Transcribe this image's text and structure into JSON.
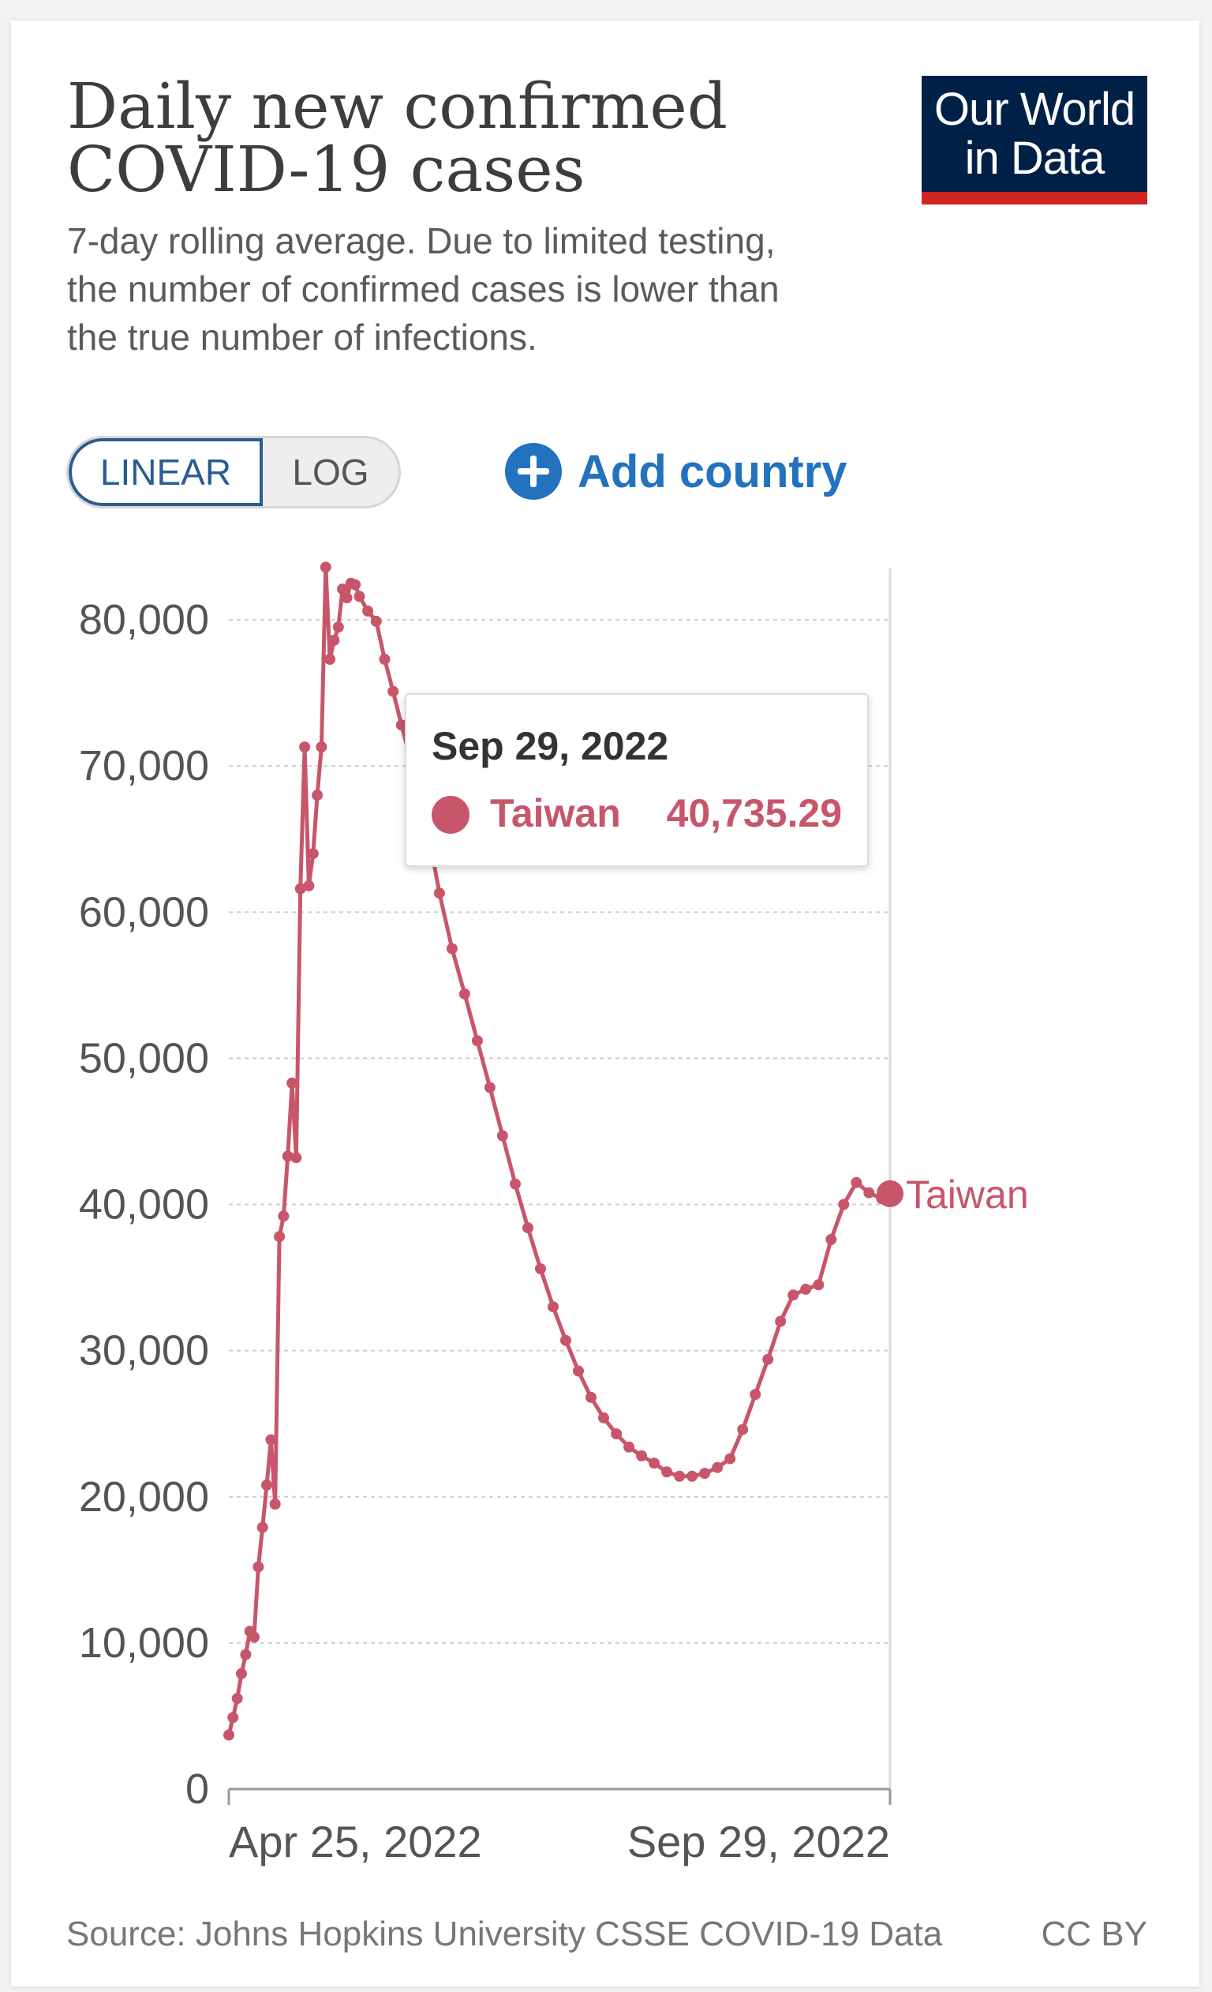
{
  "header": {
    "title_line1": "Daily new confirmed",
    "title_line2": "COVID-19 cases",
    "subtitle_line1": "7-day rolling average. Due to limited testing,",
    "subtitle_line2": "the number of confirmed cases is lower than",
    "subtitle_line3": "the true number of infections.",
    "logo_line1": "Our World",
    "logo_line2": "in Data"
  },
  "controls": {
    "linear_label": "LINEAR",
    "log_label": "LOG",
    "add_country_label": "Add country"
  },
  "tooltip": {
    "date": "Sep 29, 2022",
    "country": "Taiwan",
    "value": "40,735.29"
  },
  "footer": {
    "source": "Source: Johns Hopkins University CSSE COVID-19 Data",
    "license": "CC BY"
  },
  "colors": {
    "series": "#c8566a",
    "accent": "#2372bf",
    "logo_bg": "#002147",
    "logo_bar": "#ce261e"
  },
  "chart_data": {
    "type": "line",
    "title": "Daily new confirmed COVID-19 cases",
    "subtitle": "7-day rolling average. Due to limited testing, the number of confirmed cases is lower than the true number of infections.",
    "xlabel": "",
    "ylabel": "",
    "x_tick_labels": [
      "Apr 25, 2022",
      "Sep 29, 2022"
    ],
    "x_range": [
      "2022-04-25",
      "2022-09-29"
    ],
    "ylim": [
      0,
      80000
    ],
    "y_ticks": [
      0,
      10000,
      20000,
      30000,
      40000,
      50000,
      60000,
      70000,
      80000
    ],
    "y_tick_labels": [
      "0",
      "10,000",
      "20,000",
      "30,000",
      "40,000",
      "50,000",
      "60,000",
      "70,000",
      "80,000"
    ],
    "grid": "horizontal dashed",
    "series": [
      {
        "name": "Taiwan",
        "color": "#c8566a",
        "points": [
          {
            "x": "2022-04-25",
            "y": 3700
          },
          {
            "x": "2022-04-26",
            "y": 4900
          },
          {
            "x": "2022-04-27",
            "y": 6200
          },
          {
            "x": "2022-04-28",
            "y": 7900
          },
          {
            "x": "2022-04-29",
            "y": 9200
          },
          {
            "x": "2022-04-30",
            "y": 10800
          },
          {
            "x": "2022-05-01",
            "y": 10400
          },
          {
            "x": "2022-05-02",
            "y": 15200
          },
          {
            "x": "2022-05-03",
            "y": 17900
          },
          {
            "x": "2022-05-04",
            "y": 20800
          },
          {
            "x": "2022-05-05",
            "y": 23900
          },
          {
            "x": "2022-05-06",
            "y": 19500
          },
          {
            "x": "2022-05-07",
            "y": 37800
          },
          {
            "x": "2022-05-08",
            "y": 39200
          },
          {
            "x": "2022-05-09",
            "y": 43300
          },
          {
            "x": "2022-05-10",
            "y": 48300
          },
          {
            "x": "2022-05-11",
            "y": 43200
          },
          {
            "x": "2022-05-12",
            "y": 61600
          },
          {
            "x": "2022-05-13",
            "y": 71300
          },
          {
            "x": "2022-05-14",
            "y": 61800
          },
          {
            "x": "2022-05-15",
            "y": 64000
          },
          {
            "x": "2022-05-16",
            "y": 68000
          },
          {
            "x": "2022-05-17",
            "y": 71300
          },
          {
            "x": "2022-05-18",
            "y": 83600
          },
          {
            "x": "2022-05-19",
            "y": 77300
          },
          {
            "x": "2022-05-20",
            "y": 78600
          },
          {
            "x": "2022-05-21",
            "y": 79500
          },
          {
            "x": "2022-05-22",
            "y": 82100
          },
          {
            "x": "2022-05-23",
            "y": 81500
          },
          {
            "x": "2022-05-24",
            "y": 82500
          },
          {
            "x": "2022-05-25",
            "y": 82400
          },
          {
            "x": "2022-05-26",
            "y": 81600
          },
          {
            "x": "2022-05-28",
            "y": 80600
          },
          {
            "x": "2022-05-30",
            "y": 79900
          },
          {
            "x": "2022-06-01",
            "y": 77300
          },
          {
            "x": "2022-06-03",
            "y": 75100
          },
          {
            "x": "2022-06-05",
            "y": 72800
          },
          {
            "x": "2022-06-08",
            "y": 69500
          },
          {
            "x": "2022-06-11",
            "y": 66000
          },
          {
            "x": "2022-06-14",
            "y": 61300
          },
          {
            "x": "2022-06-17",
            "y": 57500
          },
          {
            "x": "2022-06-20",
            "y": 54400
          },
          {
            "x": "2022-06-23",
            "y": 51200
          },
          {
            "x": "2022-06-26",
            "y": 48000
          },
          {
            "x": "2022-06-29",
            "y": 44700
          },
          {
            "x": "2022-07-02",
            "y": 41400
          },
          {
            "x": "2022-07-05",
            "y": 38400
          },
          {
            "x": "2022-07-08",
            "y": 35600
          },
          {
            "x": "2022-07-11",
            "y": 33000
          },
          {
            "x": "2022-07-14",
            "y": 30700
          },
          {
            "x": "2022-07-17",
            "y": 28600
          },
          {
            "x": "2022-07-20",
            "y": 26800
          },
          {
            "x": "2022-07-23",
            "y": 25400
          },
          {
            "x": "2022-07-26",
            "y": 24300
          },
          {
            "x": "2022-07-29",
            "y": 23400
          },
          {
            "x": "2022-08-01",
            "y": 22800
          },
          {
            "x": "2022-08-04",
            "y": 22300
          },
          {
            "x": "2022-08-07",
            "y": 21700
          },
          {
            "x": "2022-08-10",
            "y": 21400
          },
          {
            "x": "2022-08-13",
            "y": 21400
          },
          {
            "x": "2022-08-16",
            "y": 21600
          },
          {
            "x": "2022-08-19",
            "y": 22000
          },
          {
            "x": "2022-08-22",
            "y": 22600
          },
          {
            "x": "2022-08-25",
            "y": 24600
          },
          {
            "x": "2022-08-28",
            "y": 27000
          },
          {
            "x": "2022-08-31",
            "y": 29400
          },
          {
            "x": "2022-09-03",
            "y": 32000
          },
          {
            "x": "2022-09-06",
            "y": 33800
          },
          {
            "x": "2022-09-09",
            "y": 34200
          },
          {
            "x": "2022-09-12",
            "y": 34500
          },
          {
            "x": "2022-09-15",
            "y": 37600
          },
          {
            "x": "2022-09-18",
            "y": 40000
          },
          {
            "x": "2022-09-21",
            "y": 41500
          },
          {
            "x": "2022-09-24",
            "y": 40800
          },
          {
            "x": "2022-09-27",
            "y": 40400
          },
          {
            "x": "2022-09-29",
            "y": 40735.29
          }
        ]
      }
    ],
    "end_label": "Taiwan",
    "highlighted_point": {
      "x": "2022-09-29",
      "y": 40735.29
    }
  }
}
